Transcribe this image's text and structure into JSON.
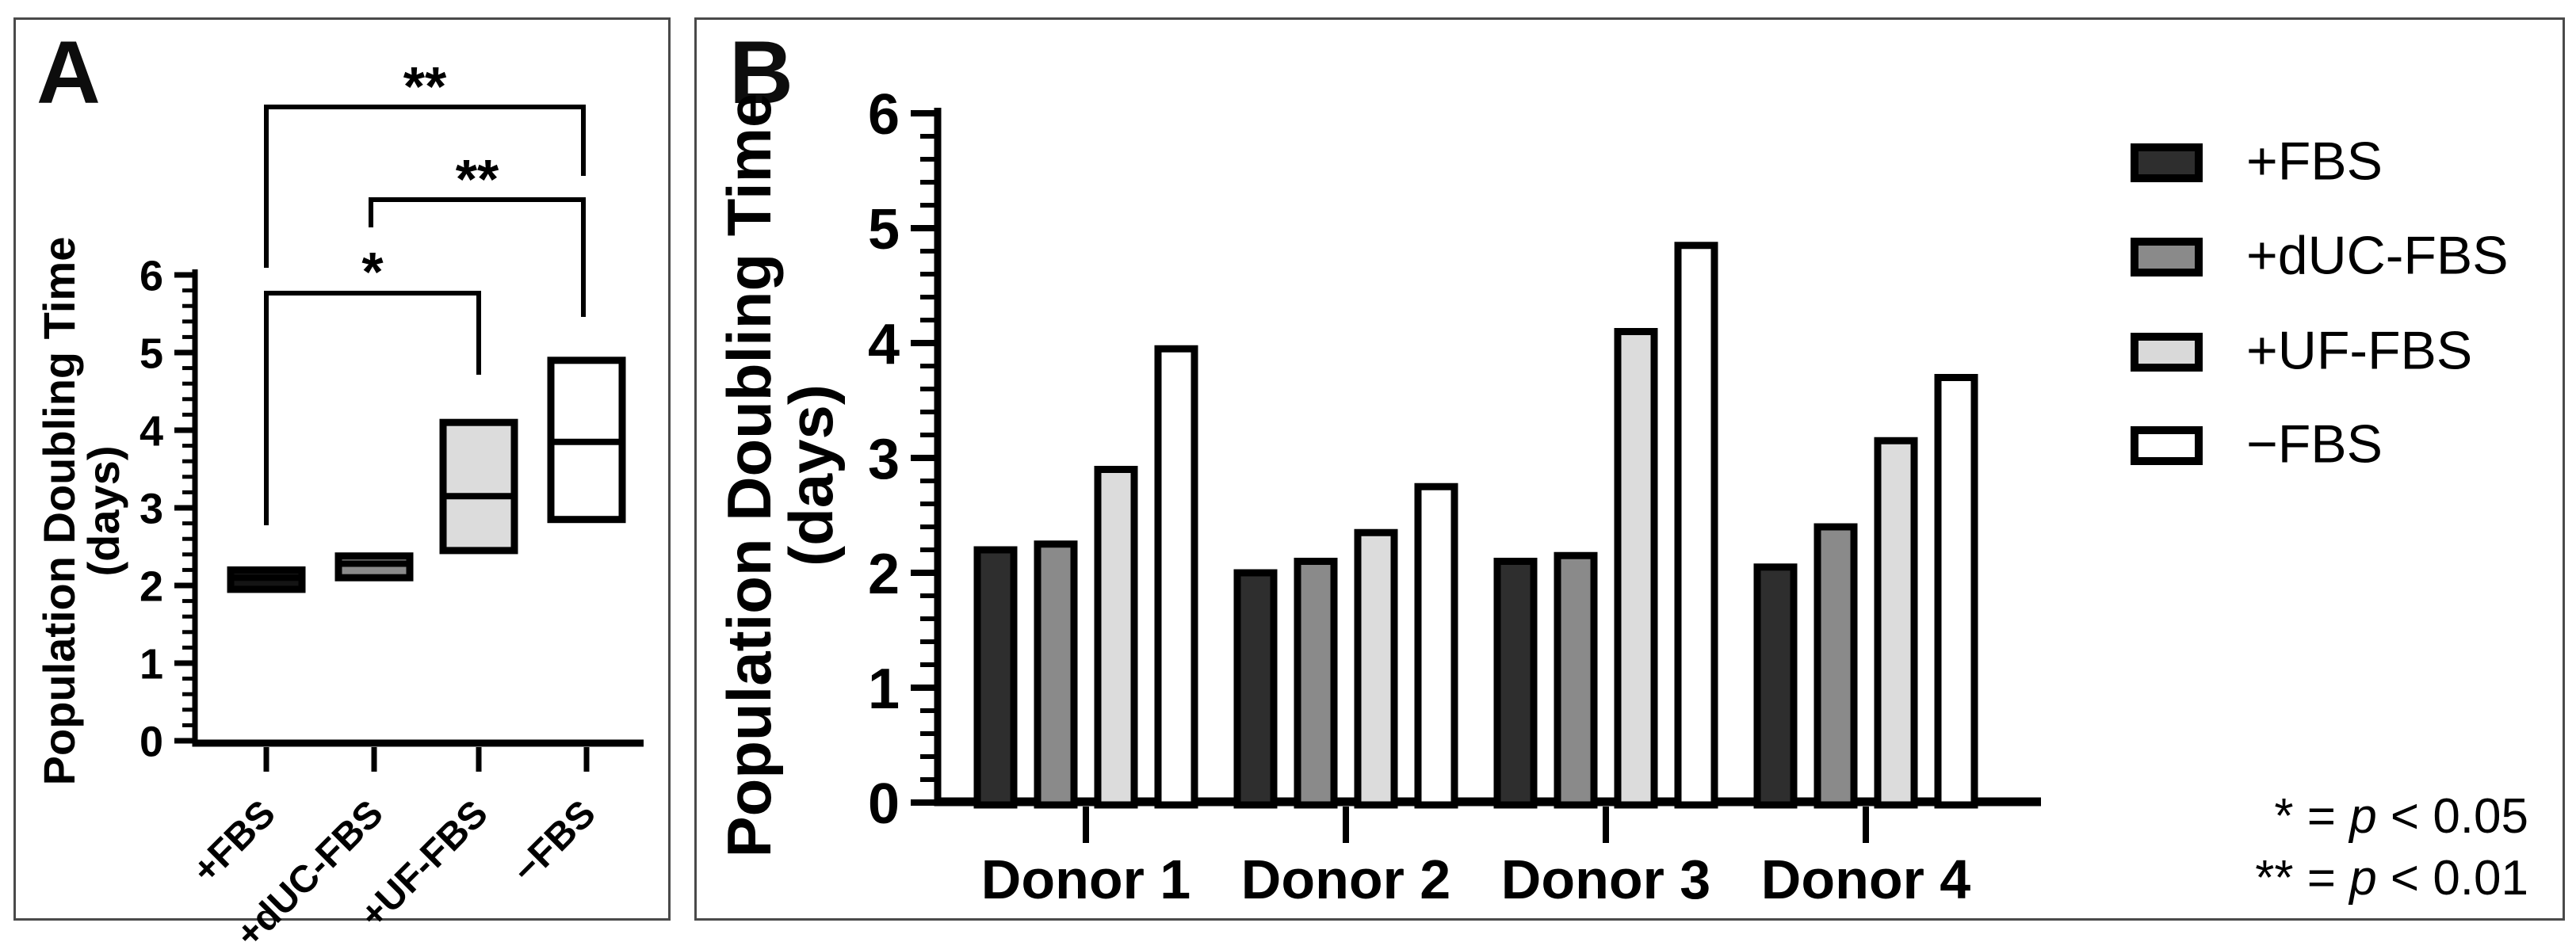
{
  "figure": {
    "panel_a": {
      "label": "A"
    },
    "panel_b": {
      "label": "B"
    },
    "legend": {
      "items": [
        {
          "label": "+FBS",
          "fill": "#2e2e2e"
        },
        {
          "label": "+dUC-FBS",
          "fill": "#8a8a8a"
        },
        {
          "label": "+UF-FBS",
          "fill": "#d9d9d9"
        },
        {
          "label": "−FBS",
          "fill": "#ffffff"
        }
      ]
    },
    "footnote": {
      "line1": {
        "pre": "* = ",
        "p": "p",
        "post": " < 0.05"
      },
      "line2": {
        "pre": "** = ",
        "p": "p",
        "post": " < 0.01"
      }
    }
  },
  "chart_data": [
    {
      "type": "box",
      "panel": "A",
      "ylabel_line1": "Population Doubling Time",
      "ylabel_line2": "(days)",
      "ylim": [
        0,
        6
      ],
      "yticks": [
        0,
        1,
        2,
        3,
        4,
        5,
        6
      ],
      "minor_tick_step": 0.2,
      "grid": false,
      "categories": [
        "+FBS",
        "+dUC-FBS",
        "+UF-FBS",
        "−FBS"
      ],
      "boxes": [
        {
          "category": "+FBS",
          "min": 1.95,
          "median": 2.1,
          "max": 2.2,
          "fill": "#141414"
        },
        {
          "category": "+dUC-FBS",
          "min": 2.1,
          "median": 2.28,
          "max": 2.38,
          "fill": "#8a8a8a"
        },
        {
          "category": "+UF-FBS",
          "min": 2.45,
          "median": 3.15,
          "max": 4.1,
          "fill": "#dcdcdc"
        },
        {
          "category": "−FBS",
          "min": 2.85,
          "median": 3.85,
          "max": 4.9,
          "fill": "#ffffff"
        }
      ],
      "significance_brackets": [
        {
          "label": "**",
          "from": "+FBS",
          "to": "−FBS"
        },
        {
          "label": "**",
          "from": "+dUC-FBS",
          "to": "−FBS"
        },
        {
          "label": "*",
          "from": "+FBS",
          "to": "+UF-FBS"
        }
      ]
    },
    {
      "type": "bar",
      "panel": "B",
      "ylabel_line1": "Population Doubling Time",
      "ylabel_line2": "(days)",
      "ylim": [
        0,
        6
      ],
      "yticks": [
        0,
        1,
        2,
        3,
        4,
        5,
        6
      ],
      "minor_tick_step": 0.2,
      "grid": false,
      "legend_position": "right",
      "categories": [
        "Donor 1",
        "Donor 2",
        "Donor 3",
        "Donor 4"
      ],
      "series": [
        {
          "name": "+FBS",
          "fill": "#2e2e2e",
          "values": [
            2.2,
            2.0,
            2.1,
            2.05
          ]
        },
        {
          "name": "+dUC-FBS",
          "fill": "#8a8a8a",
          "values": [
            2.25,
            2.1,
            2.15,
            2.4
          ]
        },
        {
          "name": "+UF-FBS",
          "fill": "#dcdcdc",
          "values": [
            2.9,
            2.35,
            4.1,
            3.15
          ]
        },
        {
          "name": "−FBS",
          "fill": "#ffffff",
          "values": [
            3.95,
            2.75,
            4.85,
            3.7
          ]
        }
      ]
    }
  ]
}
